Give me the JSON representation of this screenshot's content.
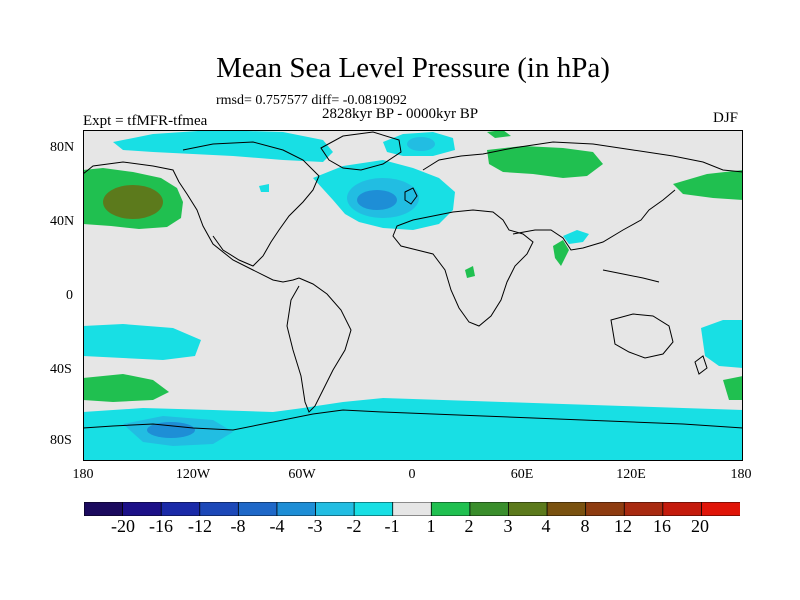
{
  "figure": {
    "title": "Mean Sea Level Pressure (in hPa)",
    "stats": "rmsd= 0.757577 diff= -0.0819092",
    "period": "2828kyr BP - 0000kyr BP",
    "experiment": "Expt = tfMFR-tfmea",
    "season": "DJF"
  },
  "axes": {
    "lat_ticks": [
      "80N",
      "40N",
      "0",
      "40S",
      "80S"
    ],
    "lon_ticks": [
      "180",
      "120W",
      "60W",
      "0",
      "60E",
      "120E",
      "180"
    ]
  },
  "colorbar": {
    "labels": [
      "-20",
      "-16",
      "-12",
      "-8",
      "-4",
      "-3",
      "-2",
      "-1",
      "1",
      "2",
      "3",
      "4",
      "8",
      "12",
      "16",
      "20"
    ],
    "colors": [
      "#1b0a5e",
      "#1c1088",
      "#1a2aa8",
      "#1c48b8",
      "#1f68c8",
      "#1e8ed6",
      "#22bde2",
      "#18dfe4",
      "#e6e6e6",
      "#20c050",
      "#3a8e2c",
      "#5c7a1c",
      "#7a5210",
      "#8e3c10",
      "#a82a10",
      "#c41a0c",
      "#e01408"
    ]
  },
  "colors": {
    "background": "#e6e6e6",
    "coast": "#000000"
  }
}
